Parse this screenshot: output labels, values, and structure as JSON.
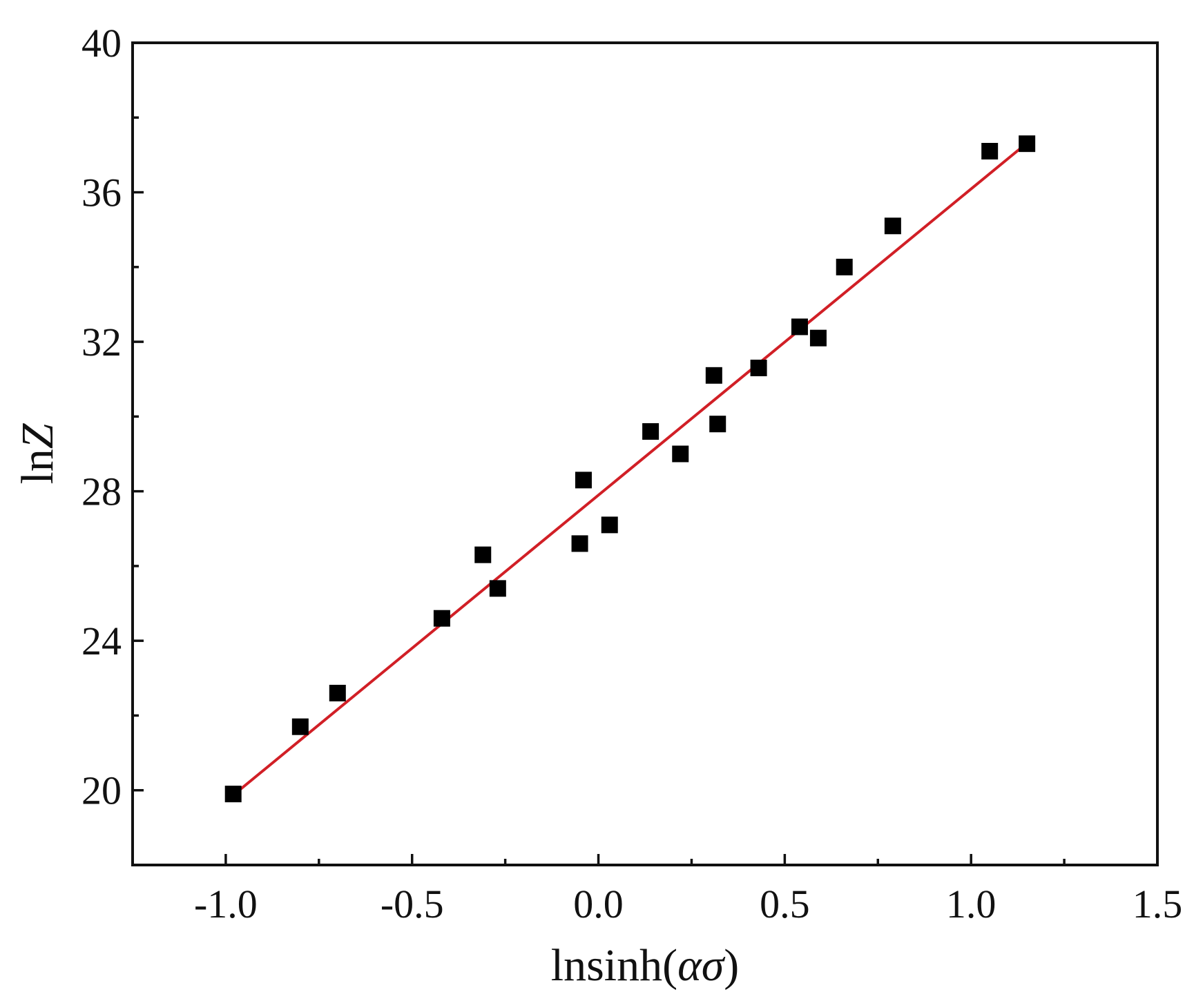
{
  "chart_data": {
    "type": "scatter",
    "title": "",
    "xlabel": {
      "prefix": "lnsinh(",
      "var": "ασ",
      "suffix": ")"
    },
    "ylabel": {
      "prefix": "ln",
      "var": "Z"
    },
    "xlim": [
      -1.25,
      1.5
    ],
    "ylim": [
      18,
      40
    ],
    "xticks": [
      -1.0,
      -0.5,
      0.0,
      0.5,
      1.0,
      1.5
    ],
    "xtick_labels": [
      "-1.0",
      "-0.5",
      "0.0",
      "0.5",
      "1.0",
      "1.5"
    ],
    "yticks": [
      20,
      24,
      28,
      32,
      36,
      40
    ],
    "ytick_labels": [
      "20",
      "24",
      "28",
      "32",
      "36",
      "40"
    ],
    "grid": false,
    "colors": {
      "points": "#000000",
      "fit_line": "#d11f26",
      "axes": "#111111"
    },
    "series": [
      {
        "marker": "square",
        "x": [
          -0.98,
          -0.8,
          -0.7,
          -0.42,
          -0.31,
          -0.27,
          -0.05,
          -0.04,
          0.03,
          0.14,
          0.22,
          0.31,
          0.32,
          0.43,
          0.54,
          0.59,
          0.66,
          0.79,
          1.05,
          1.15
        ],
        "y": [
          19.9,
          21.7,
          22.6,
          24.6,
          26.3,
          25.4,
          26.6,
          28.3,
          27.1,
          29.6,
          29.0,
          31.1,
          29.8,
          31.3,
          32.4,
          32.1,
          34.0,
          35.1,
          37.1,
          37.3
        ]
      }
    ],
    "fit_line": {
      "x": [
        -0.97,
        1.16
      ],
      "y": [
        19.95,
        37.4
      ]
    }
  }
}
